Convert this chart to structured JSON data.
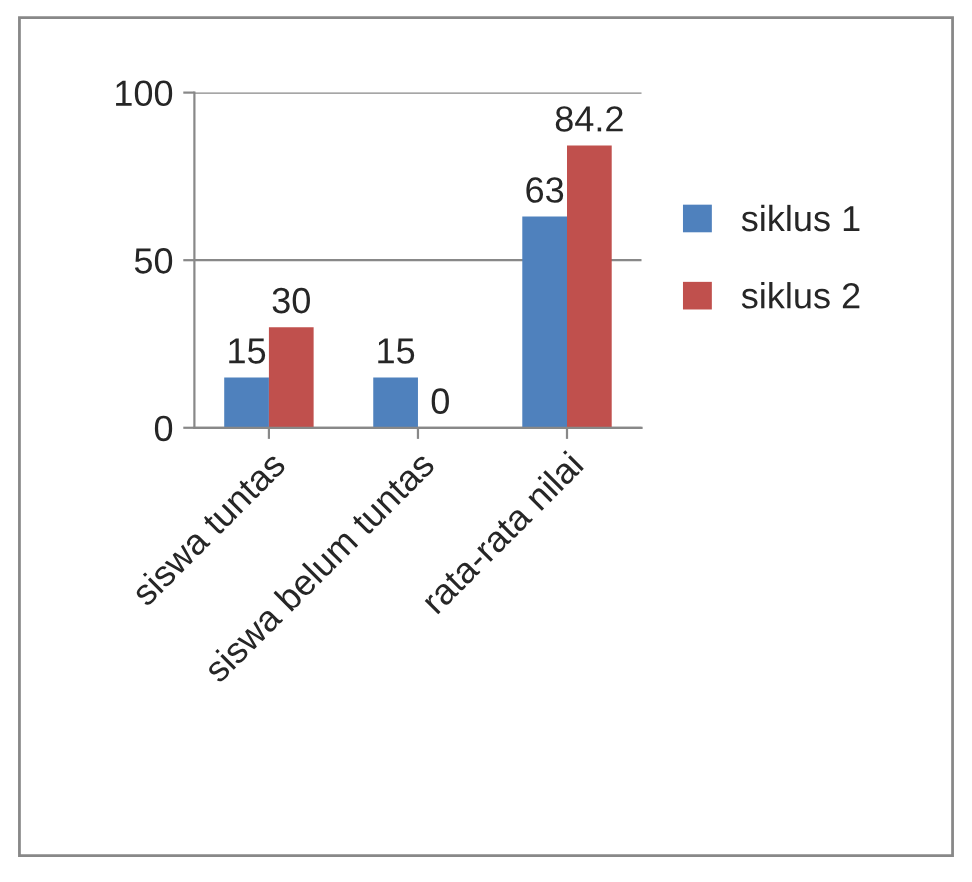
{
  "chart_data": {
    "type": "bar",
    "categories": [
      "siswa tuntas",
      "siswa belum tuntas",
      "rata-rata nilai"
    ],
    "series": [
      {
        "name": "siklus 1",
        "color": "#4f81bd",
        "values": [
          15,
          15,
          63
        ]
      },
      {
        "name": "siklus 2",
        "color": "#c0504d",
        "values": [
          30,
          0,
          84.2
        ]
      }
    ],
    "ylim": [
      0,
      100
    ],
    "yticks": [
      0,
      50,
      100
    ],
    "grid": "y",
    "legend": "right",
    "data_labels": true
  }
}
